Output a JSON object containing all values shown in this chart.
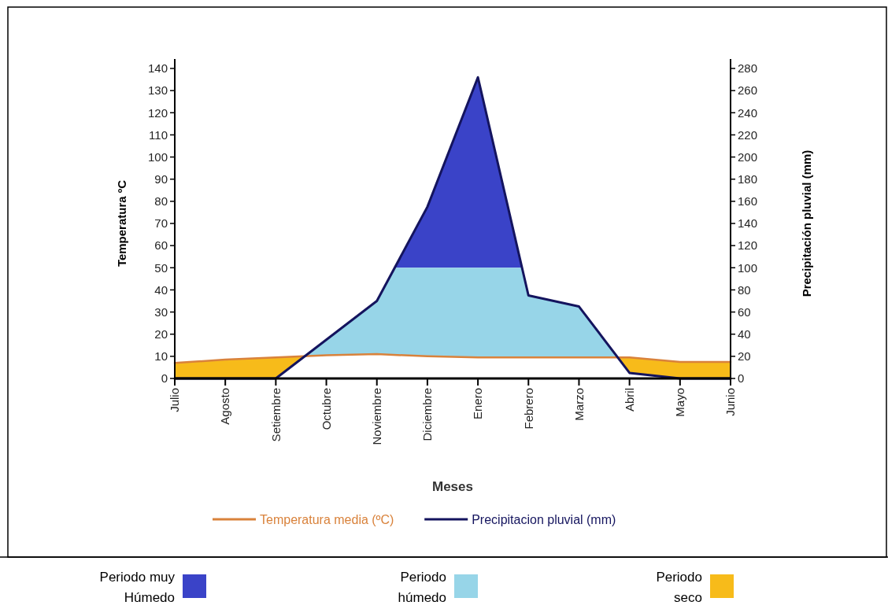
{
  "chart_data": {
    "type": "line",
    "xlabel": "Meses",
    "ylabel": "Temperatura ºC",
    "y2label": "Precipitación pluvial (mm)",
    "categories": [
      "Julio",
      "Agosto",
      "Setiembre",
      "Octubre",
      "Noviembre",
      "Diciembre",
      "Enero",
      "Febrero",
      "Marzo",
      "Abril",
      "Mayo",
      "Junio"
    ],
    "series": [
      {
        "name": "Temperatura media (ºC)",
        "color": "#d9823b",
        "values": [
          7,
          8.5,
          9.5,
          10.5,
          11,
          10,
          9.5,
          9.5,
          9.5,
          9.5,
          7.5,
          7.5
        ]
      },
      {
        "name": "Precipitacion pluvial (mm)",
        "color": "#14145e",
        "axis": "y2",
        "values": [
          0,
          0,
          0,
          35,
          70,
          155,
          272,
          75,
          65,
          5,
          0,
          0
        ]
      }
    ],
    "ylim": [
      0,
      140
    ],
    "yticks": [
      0,
      10,
      20,
      30,
      40,
      50,
      60,
      70,
      80,
      90,
      100,
      110,
      120,
      130,
      140
    ],
    "y2lim": [
      0,
      280
    ],
    "y2ticks": [
      0,
      20,
      40,
      60,
      80,
      100,
      120,
      140,
      160,
      180,
      200,
      220,
      240,
      260,
      280
    ],
    "bands": [
      {
        "axis": "y2",
        "from": 100,
        "to": 280,
        "label": "Periodo muy Húmedo",
        "color": "#3a43c8"
      },
      {
        "axis": "y2",
        "from": 0,
        "to": 100,
        "label": "Periodo húmedo",
        "color": "#97d5e8"
      },
      {
        "axis": "y",
        "from": 0,
        "to": 140,
        "label": "Periodo seco",
        "color": "#f7bb1a"
      }
    ],
    "grid": false,
    "legend": "bottom",
    "line_style": "solid",
    "marker": "none"
  }
}
